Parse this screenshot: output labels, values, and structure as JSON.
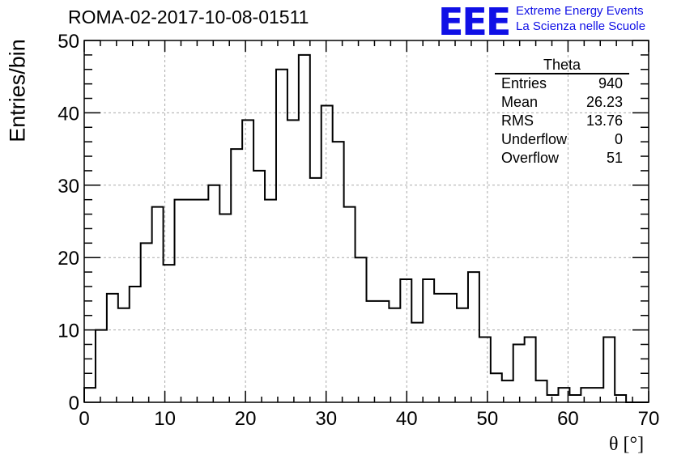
{
  "header": {
    "title": "ROMA-02-2017-10-08-01511",
    "logo": "EEE",
    "logo_line1": "Extreme Energy Events",
    "logo_line2": "La Scienza nelle Scuole"
  },
  "stats_box": {
    "title": "Theta",
    "rows": [
      {
        "label": "Entries",
        "value": "940"
      },
      {
        "label": "Mean",
        "value": "26.23"
      },
      {
        "label": "RMS",
        "value": "13.76"
      },
      {
        "label": "Underflow",
        "value": "0"
      },
      {
        "label": "Overflow",
        "value": "51"
      }
    ]
  },
  "colors": {
    "line": "#000000",
    "grid": "#aaaaaa",
    "logo": "#1010e6"
  },
  "chart_data": {
    "type": "bar",
    "histogram": true,
    "xlabel": "θ [°]",
    "ylabel": "Entries/bin",
    "xlim": [
      0,
      70
    ],
    "ylim": [
      0,
      50
    ],
    "bin_width": 1.4,
    "xticks": [
      0,
      10,
      20,
      30,
      40,
      50,
      60,
      70
    ],
    "yticks": [
      0,
      10,
      20,
      30,
      40,
      50
    ],
    "grid": true,
    "values": [
      2,
      10,
      15,
      13,
      16,
      22,
      27,
      19,
      28,
      28,
      28,
      30,
      26,
      35,
      39,
      32,
      28,
      46,
      39,
      48,
      31,
      41,
      36,
      27,
      20,
      14,
      14,
      13,
      17,
      11,
      17,
      15,
      15,
      13,
      18,
      9,
      4,
      3,
      8,
      9,
      3,
      1,
      2,
      1,
      2,
      2,
      9,
      1,
      0,
      0
    ]
  }
}
